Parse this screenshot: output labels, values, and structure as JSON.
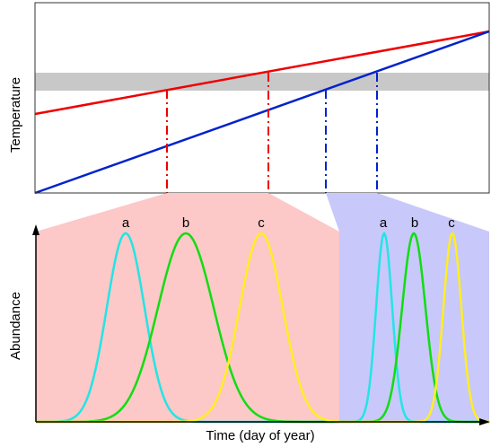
{
  "top_panel": {
    "y_label": "Temperature"
  },
  "bottom_panel": {
    "y_label": "Abundance",
    "x_label": "Time (day of year)",
    "left_curves": [
      "a",
      "b",
      "c"
    ],
    "right_curves": [
      "a",
      "b",
      "c"
    ]
  }
}
